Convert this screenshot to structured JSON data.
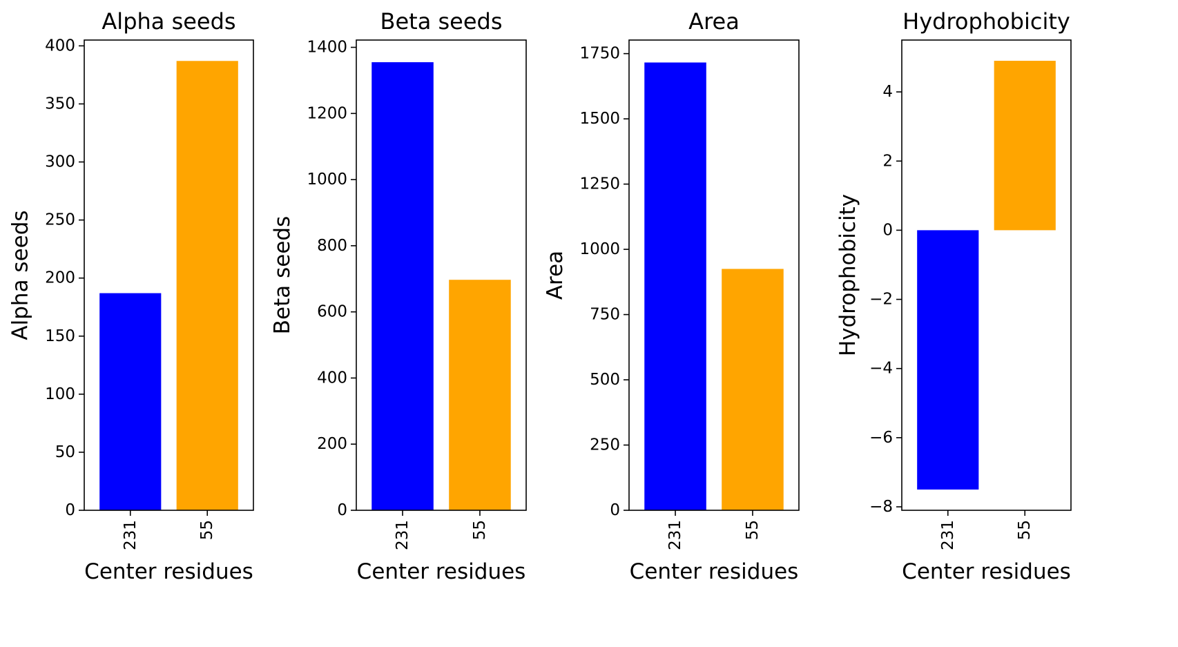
{
  "chart_data": [
    {
      "type": "bar",
      "title": "Alpha seeds",
      "xlabel": "Center residues",
      "ylabel": "Alpha seeds",
      "categories": [
        "231",
        "55"
      ],
      "values": [
        187,
        387
      ],
      "colors": [
        "#0000ff",
        "#ffa500"
      ],
      "ylim": [
        0,
        405
      ],
      "yticks": [
        0,
        50,
        100,
        150,
        200,
        250,
        300,
        350,
        400
      ],
      "ytick_labels": [
        "0",
        "50",
        "100",
        "150",
        "200",
        "250",
        "300",
        "350",
        "400"
      ],
      "xtick_rotation": "vertical",
      "grid": false,
      "legend": "none"
    },
    {
      "type": "bar",
      "title": "Beta seeds",
      "xlabel": "Center residues",
      "ylabel": "Beta seeds",
      "categories": [
        "231",
        "55"
      ],
      "values": [
        1355,
        697
      ],
      "colors": [
        "#0000ff",
        "#ffa500"
      ],
      "ylim": [
        0,
        1422
      ],
      "yticks": [
        0,
        200,
        400,
        600,
        800,
        1000,
        1200,
        1400
      ],
      "ytick_labels": [
        "0",
        "200",
        "400",
        "600",
        "800",
        "1000",
        "1200",
        "1400"
      ],
      "xtick_rotation": "vertical",
      "grid": false,
      "legend": "none"
    },
    {
      "type": "bar",
      "title": "Area",
      "xlabel": "Center residues",
      "ylabel": "Area",
      "categories": [
        "231",
        "55"
      ],
      "values": [
        1716,
        925
      ],
      "colors": [
        "#0000ff",
        "#ffa500"
      ],
      "ylim": [
        0,
        1802
      ],
      "yticks": [
        0,
        250,
        500,
        750,
        1000,
        1250,
        1500,
        1750
      ],
      "ytick_labels": [
        "0",
        "250",
        "500",
        "750",
        "1000",
        "1250",
        "1500",
        "1750"
      ],
      "xtick_rotation": "vertical",
      "grid": false,
      "legend": "none"
    },
    {
      "type": "bar",
      "title": "Hydrophobicity",
      "xlabel": "Center residues",
      "ylabel": "Hydrophobicity",
      "categories": [
        "231",
        "55"
      ],
      "values": [
        -7.5,
        4.9
      ],
      "colors": [
        "#0000ff",
        "#ffa500"
      ],
      "ylim": [
        -8.1,
        5.5
      ],
      "yticks": [
        -8,
        -6,
        -4,
        -2,
        0,
        2,
        4
      ],
      "ytick_labels": [
        "−8",
        "−6",
        "−4",
        "−2",
        "0",
        "2",
        "4"
      ],
      "xtick_rotation": "vertical",
      "grid": false,
      "legend": "none"
    }
  ]
}
